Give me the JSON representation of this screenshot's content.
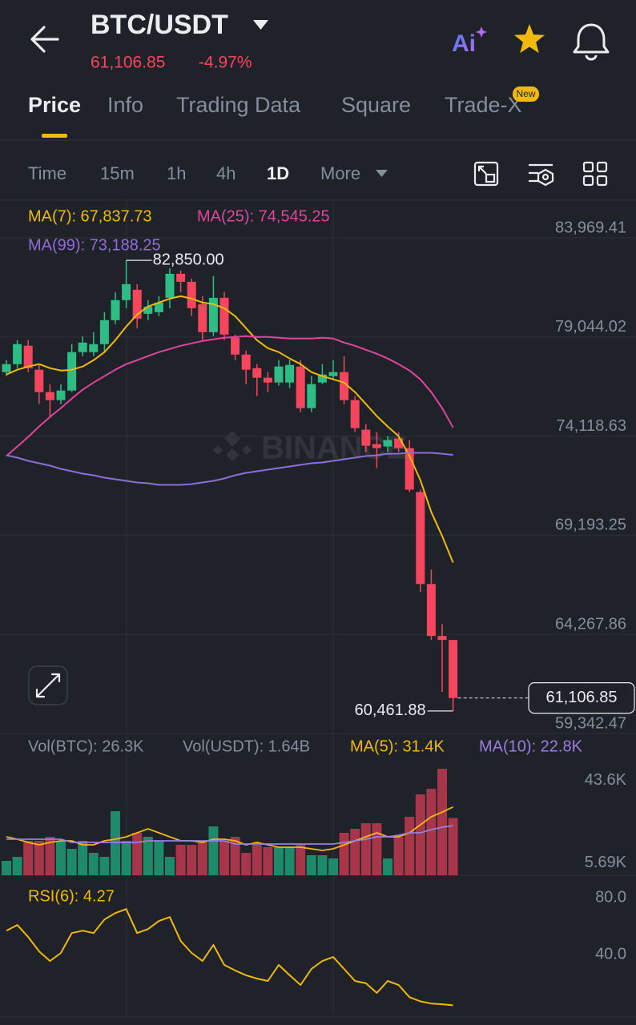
{
  "header": {
    "pair": "BTC/USDT",
    "price": "61,106.85",
    "change": "-4.97%",
    "ai": "Ai"
  },
  "tabs": [
    "Price",
    "Info",
    "Trading Data",
    "Square",
    "Trade-X"
  ],
  "active_tab": 0,
  "new_badge": "New",
  "intervals": [
    "Time",
    "15m",
    "1h",
    "4h",
    "1D",
    "More"
  ],
  "active_interval": 4,
  "watermark": "BINANCE",
  "chart_data": [
    {
      "type": "candlestick",
      "up_color": "#2ebd85",
      "down_color": "#f6465d",
      "open": [
        77297,
        77694,
        78608,
        77416,
        76304,
        75907,
        76383,
        78290,
        78290,
        78687,
        79878,
        80871,
        81388,
        80196,
        80275,
        80990,
        82182,
        81785,
        80673,
        79282,
        80990,
        79004,
        78170,
        77495,
        77019,
        76781,
        76781,
        77575,
        75509,
        76781,
        77098,
        77297,
        75907,
        74437,
        73722,
        73602,
        74000,
        73523,
        71339,
        66771,
        64189,
        63990
      ],
      "high": [
        77892,
        78885,
        78885,
        77694,
        76701,
        76701,
        78687,
        79084,
        79282,
        80275,
        81268,
        82850,
        81666,
        80871,
        81070,
        82460,
        82341,
        81944,
        81070,
        82063,
        81268,
        79163,
        78369,
        77694,
        77297,
        77892,
        77892,
        77892,
        77098,
        77694,
        77892,
        78091,
        76105,
        74715,
        74318,
        74119,
        74318,
        73921,
        71459,
        67486,
        64785,
        63990
      ],
      "low": [
        77098,
        77495,
        77297,
        75708,
        75112,
        75708,
        76304,
        78091,
        78091,
        78290,
        79680,
        80474,
        79481,
        79878,
        80077,
        80474,
        81268,
        80077,
        78885,
        79084,
        78885,
        77892,
        76701,
        76105,
        76304,
        76622,
        76502,
        75311,
        75311,
        76701,
        76900,
        75708,
        74318,
        73325,
        72530,
        73325,
        73325,
        71339,
        66373,
        63990,
        61409,
        60461.88
      ],
      "close": [
        77694,
        78687,
        77495,
        76304,
        75907,
        76383,
        78290,
        78766,
        78687,
        79878,
        80871,
        81666,
        79958,
        80554,
        80753,
        82182,
        81785,
        80474,
        79282,
        80990,
        79163,
        78170,
        77416,
        77019,
        76781,
        77575,
        77654,
        75509,
        76701,
        77178,
        77297,
        75907,
        74516,
        73642,
        73523,
        73921,
        73523,
        71459,
        66771,
        64189,
        63990,
        61106.85
      ],
      "series": [
        {
          "name": "MA(7): 67,837.73",
          "color": "#f0b90b",
          "values": [
            77178,
            77416,
            77575,
            77694,
            77495,
            77376,
            77416,
            77575,
            77892,
            78290,
            78885,
            79561,
            80156,
            80554,
            80753,
            80951,
            81070,
            80951,
            80753,
            80673,
            80474,
            80077,
            79481,
            78885,
            78488,
            78290,
            77972,
            77694,
            77297,
            77098,
            76939,
            76781,
            76304,
            75708,
            75112,
            74596,
            74119,
            73126,
            71935,
            70346,
            69154,
            67837.73
          ]
        },
        {
          "name": "MA(25): 74,545.25",
          "color": "#e0449f",
          "values": [
            73126,
            73602,
            74079,
            74596,
            75072,
            75509,
            75986,
            76423,
            76781,
            77098,
            77416,
            77694,
            77892,
            78091,
            78290,
            78449,
            78607,
            78726,
            78845,
            78925,
            79004,
            79044,
            79084,
            79044,
            79044,
            79004,
            78965,
            78965,
            78965,
            79004,
            78965,
            78766,
            78607,
            78409,
            78210,
            77972,
            77694,
            77376,
            76939,
            76304,
            75509,
            74545.25
          ]
        },
        {
          "name": "MA(99): 73,188.25",
          "color": "#8f6dd8",
          "values": [
            73166,
            73047,
            72888,
            72769,
            72650,
            72491,
            72372,
            72252,
            72173,
            72054,
            71975,
            71895,
            71816,
            71776,
            71697,
            71697,
            71697,
            71737,
            71816,
            71895,
            72014,
            72173,
            72292,
            72372,
            72451,
            72530,
            72610,
            72689,
            72769,
            72809,
            72888,
            72967,
            73047,
            73126,
            73166,
            73245,
            73245,
            73285,
            73285,
            73285,
            73245,
            73188.25
          ]
        }
      ],
      "ylim": [
        59342.47,
        85839
      ],
      "yticks": [
        {
          "value": 83969.41,
          "label": "83,969.41"
        },
        {
          "value": 79044.02,
          "label": "79,044.02"
        },
        {
          "value": 74118.63,
          "label": "74,118.63"
        },
        {
          "value": 69193.25,
          "label": "69,193.25"
        },
        {
          "value": 64267.86,
          "label": "64,267.86"
        },
        {
          "value": 59342.47,
          "label": "59,342.47"
        }
      ],
      "grid": true,
      "annotations": [
        {
          "value": 82850,
          "label": "82,850.00"
        },
        {
          "value": 60461.88,
          "label": "60,461.88"
        }
      ],
      "last_price": {
        "value": 61106.85,
        "label": "61,106.85"
      }
    },
    {
      "type": "bar",
      "legend": [
        "Vol(BTC): 26.3K",
        "Vol(USDT): 1.64B"
      ],
      "up_color": "#1f8a6a",
      "down_color": "#a8364b",
      "values": [
        6624,
        8464,
        15824,
        15824,
        17664,
        15824,
        12144,
        15824,
        10304,
        8464,
        29440,
        15824,
        19504,
        17664,
        15824,
        8464,
        13984,
        13984,
        15824,
        22448,
        15824,
        17664,
        10304,
        13984,
        12880,
        12880,
        12880,
        13984,
        9200,
        9200,
        7728,
        19504,
        21344,
        23920,
        23920,
        7728,
        17664,
        26864,
        37168,
        39744,
        48944,
        26300
      ],
      "series": [
        {
          "name": "MA(5): 31.4K",
          "color": "#f0b90b",
          "values": [
            17664,
            16560,
            15088,
            13984,
            15088,
            15824,
            15824,
            13984,
            13984,
            15824,
            16560,
            17664,
            19504,
            21344,
            19504,
            17664,
            15824,
            15824,
            15088,
            16560,
            16560,
            15824,
            13984,
            15088,
            13984,
            12880,
            12880,
            12880,
            12144,
            11408,
            12144,
            13984,
            15824,
            17664,
            19504,
            17664,
            17664,
            19504,
            23184,
            26864,
            29000,
            31400
          ]
        },
        {
          "name": "MA(10): 22.8K",
          "color": "#9a7ee0",
          "values": [
            16560,
            16560,
            16560,
            16560,
            16560,
            16560,
            15088,
            15088,
            15088,
            15088,
            15088,
            15088,
            15088,
            15824,
            15824,
            15824,
            15824,
            15824,
            15824,
            15824,
            15824,
            14352,
            14352,
            14352,
            14352,
            14352,
            14352,
            14352,
            14352,
            14352,
            14352,
            15088,
            15824,
            16560,
            17664,
            17664,
            18400,
            19504,
            19504,
            20976,
            22080,
            22800
          ]
        }
      ],
      "ylim": [
        0,
        54464
      ],
      "yticks": [
        {
          "value": 43600,
          "label": "43.6K"
        },
        {
          "value": 5690,
          "label": "5.69K"
        }
      ]
    },
    {
      "type": "line",
      "series": [
        {
          "name": "RSI(6): 4.27",
          "color": "#f0b90b",
          "values": [
            56.9,
            60.9,
            52.4,
            42.3,
            35.5,
            41.2,
            55.2,
            56.9,
            55.2,
            64.8,
            69.3,
            72.1,
            55.2,
            58.0,
            63.7,
            66.5,
            49.6,
            41.2,
            35.5,
            46.8,
            32.7,
            28.8,
            25.4,
            23.1,
            21.4,
            32.7,
            25.4,
            18.6,
            29.9,
            35.5,
            38.3,
            29.9,
            21.4,
            19.8,
            13.0,
            21.4,
            18.6,
            10.0,
            7.0,
            5.5,
            5.0,
            4.27
          ]
        }
      ],
      "ylim": [
        -4,
        92
      ],
      "yticks": [
        {
          "value": 80,
          "label": "80.0"
        },
        {
          "value": 40,
          "label": "40.0"
        }
      ]
    }
  ]
}
